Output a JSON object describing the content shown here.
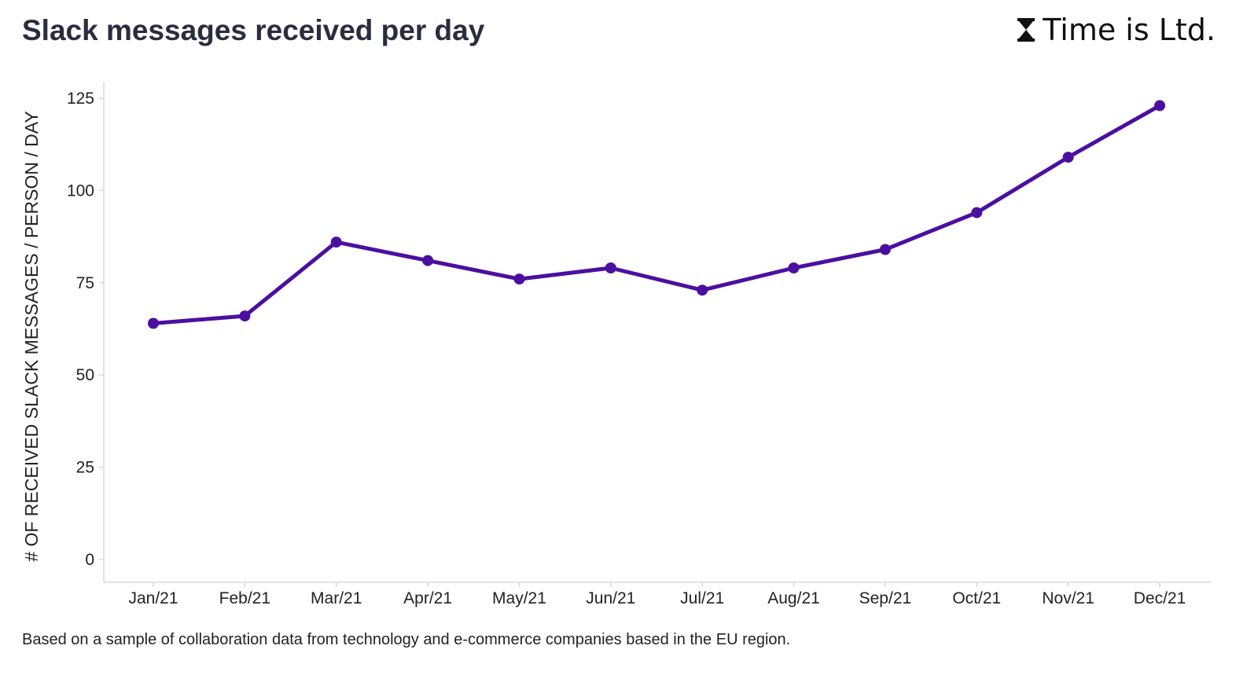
{
  "title": "Slack messages received per day",
  "brand": {
    "logo_icon": "hourglass-icon",
    "name": "Time is Ltd."
  },
  "caption": "Based on a sample of collaboration data from technology and e-commerce companies based in the EU region.",
  "chart_data": {
    "type": "line",
    "title": "Slack messages received per day",
    "xlabel": "",
    "ylabel": "# OF RECEIVED SLACK MESSAGES / PERSON / DAY",
    "categories": [
      "Jan/21",
      "Feb/21",
      "Mar/21",
      "Apr/21",
      "May/21",
      "Jun/21",
      "Jul/21",
      "Aug/21",
      "Sep/21",
      "Oct/21",
      "Nov/21",
      "Dec/21"
    ],
    "series": [
      {
        "values": [
          64,
          66,
          86,
          81,
          76,
          79,
          73,
          79,
          84,
          94,
          109,
          123
        ]
      }
    ],
    "ylim": [
      0,
      125
    ],
    "yticks": [
      0,
      25,
      50,
      75,
      100,
      125
    ],
    "grid": false,
    "legend": "none",
    "line_color": "#4b0fa0"
  }
}
